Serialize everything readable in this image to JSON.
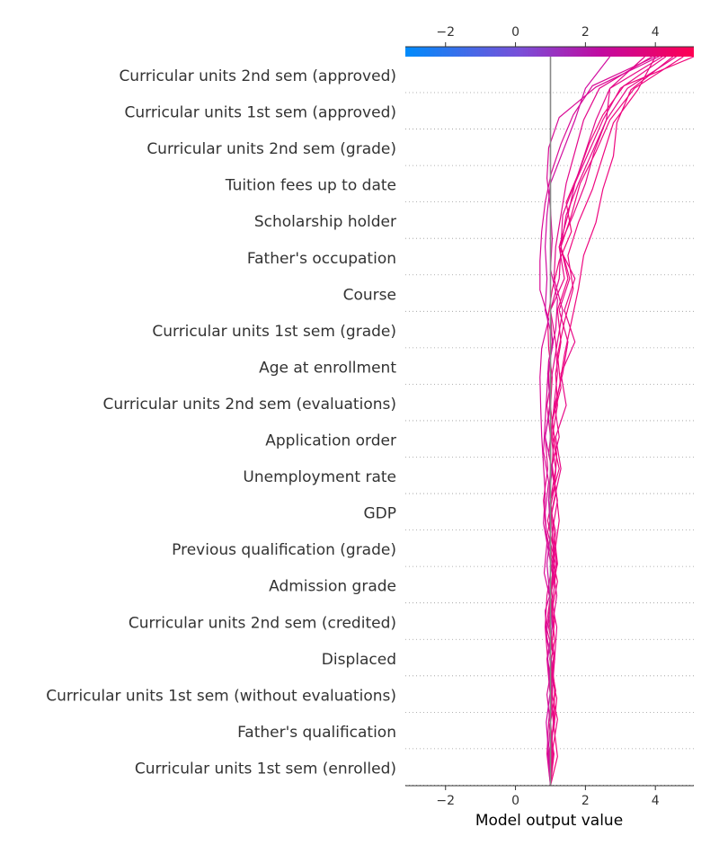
{
  "chart_data": {
    "type": "line",
    "subtype": "shap-decision-plot",
    "xlabel": "Model output value",
    "xlim": [
      -3.15,
      5.1
    ],
    "xticks": [
      -2,
      0,
      2,
      4
    ],
    "xtick_labels": [
      "−2",
      "0",
      "2",
      "4"
    ],
    "base_value": 1.0,
    "colorbar": {
      "position": "top",
      "colors": [
        "#008bfb",
        "#7a4fd8",
        "#c20a9f",
        "#ff0052"
      ]
    },
    "features": [
      "Curricular units 2nd sem (approved)",
      "Curricular units 1st sem (approved)",
      "Curricular units 2nd sem (grade)",
      "Tuition fees up to date",
      "Scholarship holder",
      "Father's occupation",
      "Course",
      "Curricular units 1st sem (grade)",
      "Age at enrollment",
      "Curricular units 2nd sem (evaluations)",
      "Application order",
      "Unemployment rate",
      "GDP",
      "Previous qualification (grade)",
      "Admission grade",
      "Curricular units 2nd sem (credited)",
      "Displaced",
      "Curricular units 1st sem (without evaluations)",
      "Father's qualification",
      "Curricular units 1st sem (enrolled)"
    ],
    "series": [
      {
        "color": "#f0087a",
        "values": [
          1.0,
          1.2,
          1.1,
          1.18,
          0.98,
          1.12,
          1.04,
          1.2,
          1.02,
          0.98,
          1.15,
          1.05,
          1.1,
          1.0,
          1.05,
          0.95,
          0.92,
          1.05,
          1.25,
          1.6,
          1.45,
          1.8,
          2.1,
          2.5,
          3.1,
          5.1
        ]
      },
      {
        "color": "#e80a88",
        "values": [
          1.0,
          1.1,
          0.95,
          1.05,
          1.12,
          0.88,
          1.0,
          1.15,
          0.92,
          1.1,
          1.3,
          1.15,
          1.45,
          1.3,
          1.7,
          1.4,
          1.7,
          1.25,
          1.65,
          2.0,
          2.25,
          2.6,
          2.7,
          4.2
        ]
      },
      {
        "color": "#ee0880",
        "values": [
          1.0,
          0.98,
          1.1,
          1.12,
          1.0,
          1.12,
          1.02,
          1.12,
          0.92,
          1.12,
          1.18,
          1.05,
          1.3,
          1.2,
          1.4,
          1.65,
          1.5,
          1.8,
          2.2,
          2.5,
          2.8,
          3.5,
          4.0
        ]
      },
      {
        "color": "#d90c96",
        "values": [
          1.0,
          1.05,
          0.98,
          1.05,
          1.08,
          0.9,
          0.85,
          1.1,
          0.95,
          0.8,
          0.85,
          0.8,
          0.75,
          0.72,
          0.7,
          0.75,
          0.95,
          0.7,
          0.7,
          0.75,
          0.85,
          1.02,
          1.3,
          1.65,
          2.2,
          4.0
        ]
      },
      {
        "color": "#e30a8c",
        "values": [
          1.0,
          0.9,
          0.95,
          1.05,
          0.92,
          0.85,
          0.9,
          1.05,
          0.88,
          0.8,
          0.92,
          0.85,
          0.98,
          0.95,
          1.05,
          1.0,
          1.25,
          1.3,
          1.35,
          1.7,
          2.0,
          2.3,
          2.7,
          3.7
        ]
      },
      {
        "color": "#ee0880",
        "values": [
          1.0,
          1.05,
          1.2,
          1.0,
          1.1,
          0.95,
          1.02,
          1.12,
          1.25,
          1.15,
          0.95,
          1.05,
          1.25,
          1.4,
          1.6,
          1.8,
          1.95,
          2.3,
          2.5,
          2.8,
          2.9,
          3.3,
          4.5
        ]
      },
      {
        "color": "#e30a8c",
        "values": [
          1.0,
          0.95,
          1.12,
          0.98,
          0.9,
          1.05,
          1.18,
          1.05,
          1.15,
          0.95,
          1.0,
          1.0,
          0.9,
          1.05,
          1.2,
          1.35,
          1.1,
          1.15,
          1.3,
          1.45,
          1.7,
          1.95,
          2.4,
          3.9
        ]
      },
      {
        "color": "#d90c96",
        "values": [
          1.0,
          0.92,
          1.0,
          0.9,
          1.05,
          0.88,
          1.02,
          0.82,
          0.9,
          0.85,
          0.95,
          0.8,
          0.85,
          0.9,
          0.95,
          1.15,
          1.2,
          1.0,
          1.05,
          1.0,
          0.9,
          0.95,
          1.25,
          2.3,
          4.1
        ]
      },
      {
        "color": "#e80a88",
        "values": [
          1.0,
          1.02,
          1.08,
          1.0,
          1.12,
          0.95,
          1.08,
          1.18,
          1.05,
          1.2,
          1.02,
          1.25,
          1.12,
          1.35,
          1.5,
          1.25,
          1.55,
          1.3,
          1.45,
          1.8,
          2.2,
          2.6,
          3.2,
          4.6
        ]
      },
      {
        "color": "#ee0880",
        "values": [
          1.0,
          1.08,
          1.0,
          1.15,
          0.98,
          1.1,
          1.0,
          1.2,
          1.1,
          1.0,
          1.25,
          1.05,
          1.2,
          1.15,
          1.3,
          1.2,
          1.5,
          1.3,
          1.6,
          1.85,
          2.3,
          2.7,
          3.4,
          4.8
        ]
      },
      {
        "color": "#e80a88",
        "values": [
          1.0,
          0.98,
          1.1,
          1.0,
          1.12,
          1.18,
          1.0,
          1.1,
          1.05,
          1.0,
          1.15,
          1.02,
          1.1,
          1.2,
          1.15,
          1.0,
          1.4,
          1.25,
          1.5,
          1.7,
          2.1,
          2.5,
          3.0,
          4.3
        ]
      },
      {
        "color": "#d10da0",
        "values": [
          1.0,
          0.95,
          0.88,
          1.0,
          0.92,
          1.05,
          0.98,
          0.9,
          1.0,
          0.95,
          1.05,
          0.85,
          1.0,
          0.92,
          1.08,
          0.85,
          0.9,
          0.85,
          0.9,
          1.0,
          1.35,
          1.7,
          2.0,
          2.7
        ]
      },
      {
        "color": "#888888",
        "values": [
          1.0,
          1.0,
          1.0,
          1.0,
          1.0,
          1.0,
          1.0,
          1.0,
          1.0,
          1.0,
          1.0,
          1.0,
          1.0,
          1.0,
          1.0,
          1.0,
          1.0,
          1.0,
          1.0,
          1.0,
          1.0,
          1.0,
          1.0,
          1.0
        ]
      }
    ]
  }
}
